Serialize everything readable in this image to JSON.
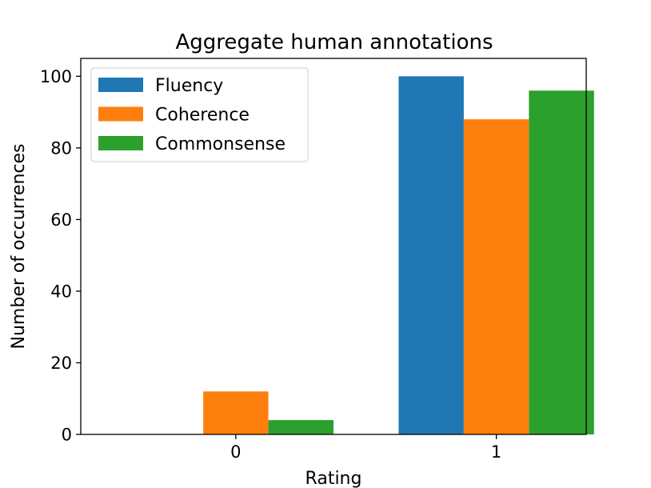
{
  "chart_data": {
    "type": "bar",
    "title": "Aggregate human annotations",
    "xlabel": "Rating",
    "ylabel": "Number of occurrences",
    "categories": [
      "0",
      "1"
    ],
    "series": [
      {
        "name": "Fluency",
        "values": [
          0,
          100
        ],
        "color": "#1f77b4"
      },
      {
        "name": "Coherence",
        "values": [
          12,
          88
        ],
        "color": "#ff7f0e"
      },
      {
        "name": "Commonsense",
        "values": [
          4,
          96
        ],
        "color": "#2ca02c"
      }
    ],
    "ylim": [
      0,
      105
    ],
    "yticks": [
      0,
      20,
      40,
      60,
      80,
      100
    ],
    "grid": false,
    "legend_position": "top-left"
  }
}
